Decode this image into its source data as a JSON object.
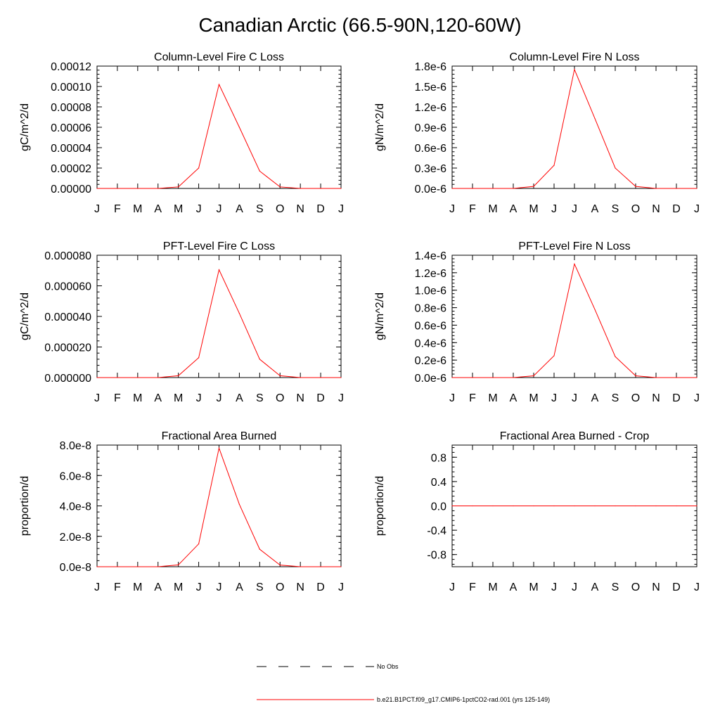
{
  "figure": {
    "title": "Canadian Arctic (66.5-90N,120-60W)"
  },
  "months": [
    "J",
    "F",
    "M",
    "A",
    "M",
    "J",
    "J",
    "A",
    "S",
    "O",
    "N",
    "D",
    "J"
  ],
  "colors": {
    "model": "#ff0000",
    "obs": "#000000",
    "axis": "#000000"
  },
  "legend": {
    "obs_label": "No Obs",
    "model_label": "b.e21.B1PCT.f09_g17.CMIP6-1pctCO2-rad.001 (yrs 125-149)"
  },
  "chart_data": [
    {
      "type": "line",
      "title": "Column-Level Fire C Loss",
      "ylabel": "gC/m^2/d",
      "xlabel": "",
      "ylim": [
        0,
        0.00012
      ],
      "yticks": [
        0,
        2e-05,
        4e-05,
        6e-05,
        8e-05,
        0.0001,
        0.00012
      ],
      "yticklabels": [
        "0.00000",
        "0.00002",
        "0.00004",
        "0.00006",
        "0.00008",
        "0.00010",
        "0.00012"
      ],
      "series": [
        {
          "values": [
            0,
            0,
            0,
            0,
            1.5e-06,
            2e-05,
            0.000102,
            6e-05,
            1.7e-05,
            1.5e-06,
            0,
            0,
            0
          ]
        }
      ]
    },
    {
      "type": "line",
      "title": "Column-Level Fire N Loss",
      "ylabel": "gN/m^2/d",
      "xlabel": "",
      "ylim": [
        0,
        1.8e-06
      ],
      "yticks": [
        0,
        3e-07,
        6e-07,
        9e-07,
        1.2e-06,
        1.5e-06,
        1.8e-06
      ],
      "yticklabels": [
        "0.0e-6",
        "0.3e-6",
        "0.6e-6",
        "0.9e-6",
        "1.2e-6",
        "1.5e-6",
        "1.8e-6"
      ],
      "series": [
        {
          "values": [
            0,
            0,
            0,
            0,
            3e-08,
            3.4e-07,
            1.75e-06,
            1.03e-06,
            3e-07,
            3e-08,
            0,
            0,
            0
          ]
        }
      ]
    },
    {
      "type": "line",
      "title": "PFT-Level Fire C Loss",
      "ylabel": "gC/m^2/d",
      "xlabel": "",
      "ylim": [
        0,
        8e-05
      ],
      "yticks": [
        0,
        2e-05,
        4e-05,
        6e-05,
        8e-05
      ],
      "yticklabels": [
        "0.000000",
        "0.000020",
        "0.000040",
        "0.000060",
        "0.000080"
      ],
      "series": [
        {
          "values": [
            0,
            0,
            0,
            0,
            1.2e-06,
            1.3e-05,
            7.05e-05,
            4.2e-05,
            1.2e-05,
            1.2e-06,
            0,
            0,
            0
          ]
        }
      ]
    },
    {
      "type": "line",
      "title": "PFT-Level Fire N Loss",
      "ylabel": "gN/m^2/d",
      "xlabel": "",
      "ylim": [
        0,
        1.4e-06
      ],
      "yticks": [
        0,
        2e-07,
        4e-07,
        6e-07,
        8e-07,
        1e-06,
        1.2e-06,
        1.4e-06
      ],
      "yticklabels": [
        "0.0e-6",
        "0.2e-6",
        "0.4e-6",
        "0.6e-6",
        "0.8e-6",
        "1.0e-6",
        "1.2e-6",
        "1.4e-6"
      ],
      "series": [
        {
          "values": [
            0,
            0,
            0,
            0,
            2e-08,
            2.5e-07,
            1.3e-06,
            7.8e-07,
            2.4e-07,
            2e-08,
            0,
            0,
            0
          ]
        }
      ]
    },
    {
      "type": "line",
      "title": "Fractional Area Burned",
      "ylabel": "proportion/d",
      "xlabel": "",
      "ylim": [
        0,
        8e-08
      ],
      "yticks": [
        0,
        2e-08,
        4e-08,
        6e-08,
        8e-08
      ],
      "yticklabels": [
        "0.0e-8",
        "2.0e-8",
        "4.0e-8",
        "6.0e-8",
        "8.0e-8"
      ],
      "series": [
        {
          "values": [
            0,
            0,
            0,
            0,
            1.2e-09,
            1.5e-08,
            7.8e-08,
            4.1e-08,
            1.15e-08,
            1.1e-09,
            0,
            0,
            0
          ]
        }
      ]
    },
    {
      "type": "line",
      "title": "Fractional Area Burned - Crop",
      "ylabel": "proportion/d",
      "xlabel": "",
      "ylim": [
        -1,
        1
      ],
      "yticks": [
        -0.8,
        -0.4,
        0,
        0.4,
        0.8
      ],
      "yticklabels": [
        "-0.8",
        "-0.4",
        "0.0",
        "0.4",
        "0.8"
      ],
      "series": [
        {
          "values": [
            0,
            0,
            0,
            0,
            0,
            0,
            0,
            0,
            0,
            0,
            0,
            0,
            0
          ]
        }
      ]
    }
  ]
}
